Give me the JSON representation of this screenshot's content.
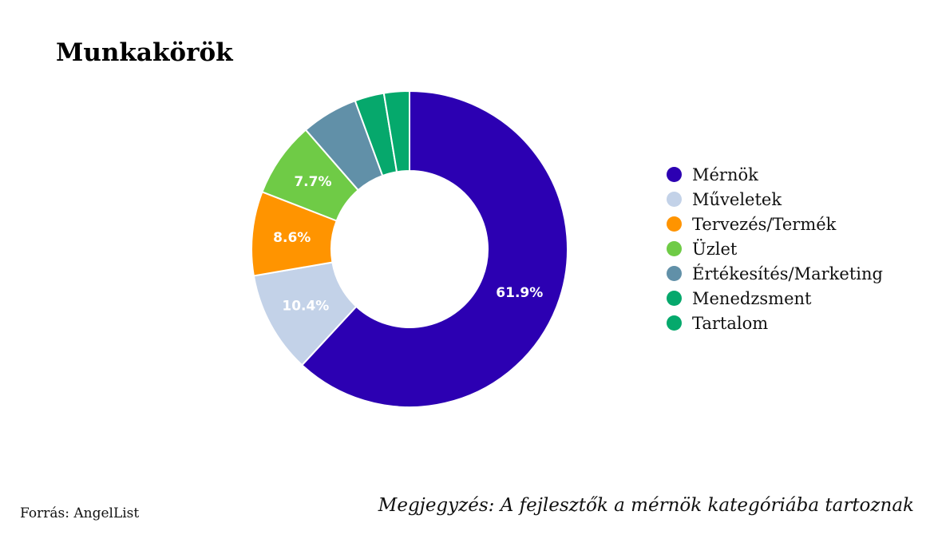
{
  "title": "Munkakörök",
  "chart_data": {
    "type": "pie",
    "subtype": "donut",
    "title": "Munkakörök",
    "slices": [
      {
        "label": "Mérnök",
        "value": 61.9,
        "display": "61.9%",
        "color": "#2c00b2",
        "label_color": "#ffffff"
      },
      {
        "label": "Műveletek",
        "value": 10.4,
        "display": "10.4%",
        "color": "#c3d2e8",
        "label_color": "#ffffff"
      },
      {
        "label": "Tervezés/Termék",
        "value": 8.6,
        "display": "8.6%",
        "color": "#ff9400",
        "label_color": "#ffffff"
      },
      {
        "label": "Üzlet",
        "value": 7.7,
        "display": "7.7%",
        "color": "#6fcb46",
        "label_color": "#ffffff"
      },
      {
        "label": "Értékesítés/Marketing",
        "value": 5.8,
        "display": "",
        "color": "#6190a8",
        "label_color": "#ffffff"
      },
      {
        "label": "Menedzsment",
        "value": 3.0,
        "display": "",
        "color": "#06a86c",
        "label_color": "#ffffff"
      },
      {
        "label": "Tartalom",
        "value": 2.6,
        "display": "",
        "color": "#05a96c",
        "label_color": "#ffffff"
      }
    ],
    "legend_position": "right"
  },
  "footer": {
    "source": "Forrás: AngelList",
    "note": "Megjegyzés: A fejlesztők a mérnök kategóriába tartoznak"
  }
}
